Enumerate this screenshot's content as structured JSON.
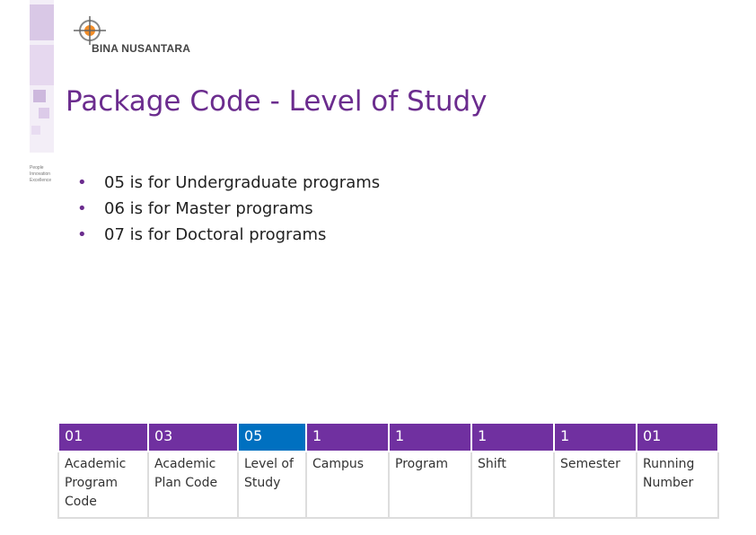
{
  "header": {
    "logo": "BINA NUSANTARA",
    "tagline": [
      "People",
      "Innovation",
      "Excellence"
    ]
  },
  "title": "Package Code - Level of Study",
  "bullets": [
    "05 is for Undergraduate programs",
    "06 is for Master programs",
    "07 is for Doctoral programs"
  ],
  "table": {
    "rows": [
      [
        "01",
        "03",
        "05",
        "1",
        "1",
        "1",
        "1",
        "01"
      ],
      [
        "Academic Program Code",
        "Academic Plan Code",
        "Level of Study",
        "Campus",
        "Program",
        "Shift",
        "Semester",
        "Running Number"
      ]
    ]
  }
}
